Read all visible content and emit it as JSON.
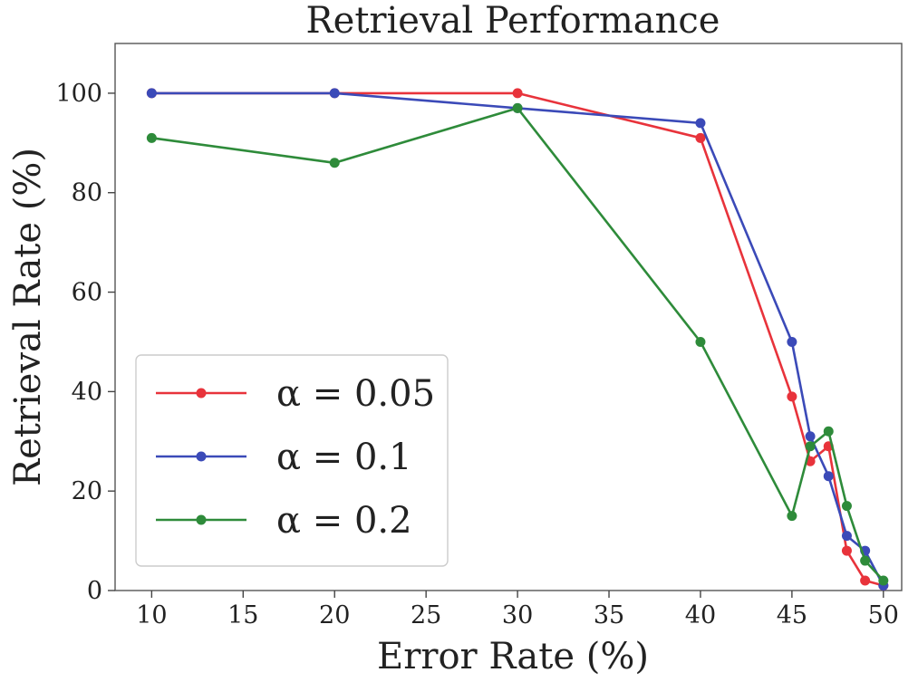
{
  "chart_data": {
    "type": "line",
    "title": "Retrieval Performance",
    "xlabel": "Error Rate (%)",
    "ylabel": "Retrieval Rate (%)",
    "xlim": [
      8,
      51
    ],
    "ylim": [
      0,
      110
    ],
    "xticks": [
      10,
      15,
      20,
      25,
      30,
      35,
      40,
      45,
      50
    ],
    "yticks": [
      0,
      20,
      40,
      60,
      80,
      100
    ],
    "grid": false,
    "legend_position": "lower-left",
    "series": [
      {
        "name": "α = 0.05",
        "color": "#e8333b",
        "x": [
          10,
          20,
          30,
          40,
          45,
          46,
          47,
          48,
          49,
          50
        ],
        "y": [
          100,
          100,
          100,
          91,
          39,
          26,
          29,
          8,
          2,
          1
        ]
      },
      {
        "name": "α = 0.1",
        "color": "#3b4ab8",
        "x": [
          10,
          20,
          30,
          40,
          45,
          46,
          47,
          48,
          49,
          50
        ],
        "y": [
          100,
          100,
          97,
          94,
          50,
          31,
          23,
          11,
          8,
          1
        ]
      },
      {
        "name": "α = 0.2",
        "color": "#2e8b3a",
        "x": [
          10,
          20,
          30,
          40,
          45,
          46,
          47,
          48,
          49,
          50
        ],
        "y": [
          91,
          86,
          97,
          50,
          15,
          29,
          32,
          17,
          6,
          2
        ]
      }
    ]
  }
}
